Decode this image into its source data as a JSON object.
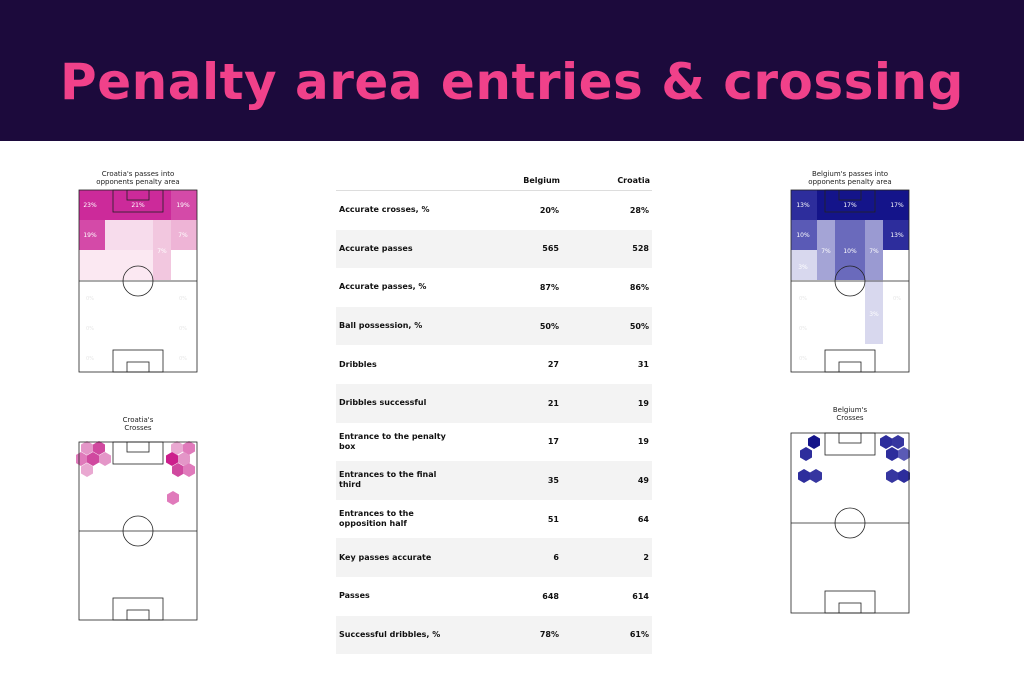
{
  "title": "Penalty area entries & crossing",
  "colors": {
    "banner_bg": "#1c0a3c",
    "title": "#f0418a",
    "croatia": "#cc2a9a",
    "belgium": "#1e1e96"
  },
  "croatia_entries": {
    "caption_line1": "Croatia's passes into",
    "caption_line2": "opponents penalty area",
    "labels": [
      "23%",
      "21%",
      "19%",
      "19%",
      "7%",
      "7%",
      "0%",
      "0%",
      "0%",
      "0%",
      "0%",
      "0%"
    ]
  },
  "croatia_crosses": {
    "caption_line1": "Croatia's",
    "caption_line2": "Crosses"
  },
  "belgium_entries": {
    "caption_line1": "Belgium's passes into",
    "caption_line2": "opponents penalty area",
    "labels": [
      "13%",
      "17%",
      "17%",
      "10%",
      "7%",
      "10%",
      "7%",
      "13%",
      "3%",
      "3%",
      "0%",
      "0%",
      "0%",
      "0%"
    ]
  },
  "belgium_crosses": {
    "caption_line1": "Belgium's",
    "caption_line2": "Crosses"
  },
  "table": {
    "col_team1": "Belgium",
    "col_team2": "Croatia",
    "rows": [
      {
        "name": "Accurate crosses, %",
        "belgium": "20%",
        "croatia": "28%"
      },
      {
        "name": "Accurate passes",
        "belgium": "565",
        "croatia": "528"
      },
      {
        "name": "Accurate passes, %",
        "belgium": "87%",
        "croatia": "86%"
      },
      {
        "name": "Ball possession, %",
        "belgium": "50%",
        "croatia": "50%"
      },
      {
        "name": "Dribbles",
        "belgium": "27",
        "croatia": "31"
      },
      {
        "name": "Dribbles successful",
        "belgium": "21",
        "croatia": "19"
      },
      {
        "name": "Entrance to the penalty box",
        "belgium": "17",
        "croatia": "19"
      },
      {
        "name": "Entrances to the final third",
        "belgium": "35",
        "croatia": "49"
      },
      {
        "name": "Entrances to the opposition half",
        "belgium": "51",
        "croatia": "64"
      },
      {
        "name": "Key passes accurate",
        "belgium": "6",
        "croatia": "2"
      },
      {
        "name": "Passes",
        "belgium": "648",
        "croatia": "614"
      },
      {
        "name": "Successful dribbles, %",
        "belgium": "78%",
        "croatia": "61%"
      }
    ]
  }
}
